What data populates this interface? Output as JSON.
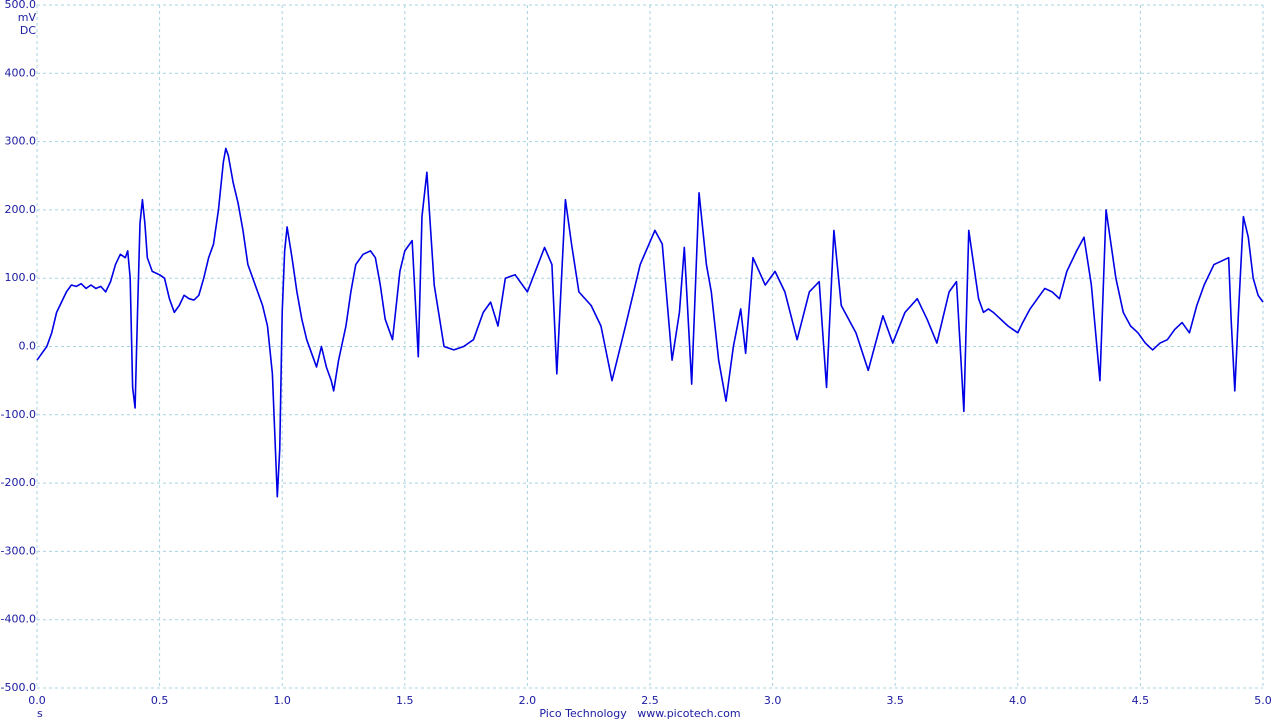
{
  "chart_data": {
    "type": "line",
    "y_unit": "mV",
    "coupling": "DC",
    "x_unit": "s",
    "footer": "Pico Technology   www.picotech.com",
    "color": "#0000e6",
    "grid": true,
    "xlim": [
      0,
      5
    ],
    "ylim": [
      -500,
      500
    ],
    "xticks": [
      {
        "value": 0,
        "label": "0.0"
      },
      {
        "value": 0.5,
        "label": "0.5"
      },
      {
        "value": 1,
        "label": "1.0"
      },
      {
        "value": 1.5,
        "label": "1.5"
      },
      {
        "value": 2,
        "label": "2.0"
      },
      {
        "value": 2.5,
        "label": "2.5"
      },
      {
        "value": 3,
        "label": "3.0"
      },
      {
        "value": 3.5,
        "label": "3.5"
      },
      {
        "value": 4,
        "label": "4.0"
      },
      {
        "value": 4.5,
        "label": "4.5"
      },
      {
        "value": 5,
        "label": "5.0"
      }
    ],
    "yticks": [
      {
        "value": 500,
        "label": "500.0"
      },
      {
        "value": 400,
        "label": "400.0"
      },
      {
        "value": 300,
        "label": "300.0"
      },
      {
        "value": 200,
        "label": "200.0"
      },
      {
        "value": 100,
        "label": "100.0"
      },
      {
        "value": 0,
        "label": "0.0"
      },
      {
        "value": -100,
        "label": "-100.0"
      },
      {
        "value": -200,
        "label": "-200.0"
      },
      {
        "value": -300,
        "label": "-300.0"
      },
      {
        "value": -400,
        "label": "-400.0"
      },
      {
        "value": -500,
        "label": "-500.0"
      }
    ],
    "x": [
      0.0,
      0.02,
      0.04,
      0.06,
      0.08,
      0.1,
      0.12,
      0.14,
      0.16,
      0.18,
      0.2,
      0.22,
      0.24,
      0.26,
      0.28,
      0.3,
      0.32,
      0.34,
      0.36,
      0.37,
      0.38,
      0.39,
      0.4,
      0.41,
      0.42,
      0.43,
      0.44,
      0.45,
      0.47,
      0.5,
      0.52,
      0.54,
      0.56,
      0.58,
      0.6,
      0.62,
      0.64,
      0.66,
      0.68,
      0.7,
      0.72,
      0.74,
      0.76,
      0.77,
      0.78,
      0.8,
      0.82,
      0.84,
      0.86,
      0.88,
      0.9,
      0.92,
      0.94,
      0.96,
      0.98,
      0.99,
      1.0,
      1.01,
      1.02,
      1.04,
      1.06,
      1.08,
      1.1,
      1.12,
      1.14,
      1.16,
      1.18,
      1.2,
      1.21,
      1.23,
      1.26,
      1.28,
      1.3,
      1.33,
      1.36,
      1.38,
      1.4,
      1.42,
      1.45,
      1.48,
      1.5,
      1.53,
      1.555,
      1.57,
      1.59,
      1.62,
      1.66,
      1.7,
      1.74,
      1.78,
      1.82,
      1.85,
      1.88,
      1.91,
      1.95,
      2.0,
      2.07,
      2.1,
      2.12,
      2.155,
      2.18,
      2.21,
      2.26,
      2.3,
      2.345,
      2.4,
      2.46,
      2.52,
      2.55,
      2.59,
      2.62,
      2.64,
      2.67,
      2.7,
      2.73,
      2.75,
      2.78,
      2.81,
      2.84,
      2.87,
      2.89,
      2.92,
      2.97,
      3.01,
      3.05,
      3.1,
      3.15,
      3.19,
      3.22,
      3.25,
      3.28,
      3.34,
      3.39,
      3.45,
      3.49,
      3.54,
      3.59,
      3.63,
      3.67,
      3.72,
      3.75,
      3.78,
      3.8,
      3.82,
      3.84,
      3.86,
      3.88,
      3.9,
      3.93,
      3.96,
      3.98,
      4.0,
      4.02,
      4.05,
      4.08,
      4.11,
      4.14,
      4.17,
      4.2,
      4.24,
      4.27,
      4.3,
      4.335,
      4.35,
      4.36,
      4.38,
      4.4,
      4.43,
      4.46,
      4.49,
      4.52,
      4.55,
      4.58,
      4.61,
      4.64,
      4.67,
      4.7,
      4.73,
      4.76,
      4.8,
      4.86,
      4.87,
      4.885,
      4.9,
      4.92,
      4.94,
      4.96,
      4.98,
      5.0
    ],
    "values": [
      -20,
      -10,
      0,
      20,
      50,
      65,
      80,
      90,
      88,
      92,
      85,
      90,
      85,
      88,
      80,
      95,
      120,
      135,
      130,
      140,
      100,
      -60,
      -90,
      50,
      180,
      215,
      180,
      130,
      110,
      105,
      100,
      70,
      50,
      60,
      75,
      70,
      68,
      75,
      100,
      130,
      150,
      200,
      270,
      290,
      280,
      240,
      210,
      170,
      120,
      100,
      80,
      60,
      30,
      -40,
      -220,
      -150,
      50,
      140,
      175,
      130,
      80,
      40,
      10,
      -10,
      -30,
      0,
      -30,
      -50,
      -65,
      -20,
      30,
      80,
      120,
      135,
      140,
      130,
      90,
      40,
      10,
      110,
      140,
      155,
      -15,
      190,
      255,
      90,
      0,
      -5,
      0,
      10,
      50,
      65,
      30,
      100,
      105,
      80,
      145,
      120,
      -40,
      215,
      150,
      80,
      60,
      30,
      -50,
      30,
      120,
      170,
      150,
      -20,
      50,
      145,
      -55,
      225,
      120,
      80,
      -20,
      -80,
      0,
      55,
      -10,
      130,
      90,
      110,
      80,
      10,
      80,
      95,
      -60,
      170,
      60,
      20,
      -35,
      45,
      5,
      50,
      70,
      40,
      5,
      80,
      95,
      -95,
      170,
      120,
      70,
      50,
      55,
      50,
      40,
      30,
      25,
      20,
      35,
      55,
      70,
      85,
      80,
      70,
      110,
      140,
      160,
      90,
      -50,
      100,
      200,
      150,
      100,
      50,
      30,
      20,
      5,
      -5,
      5,
      10,
      25,
      35,
      20,
      60,
      90,
      120,
      130,
      40,
      -65,
      50,
      190,
      160,
      100,
      75,
      65
    ]
  }
}
